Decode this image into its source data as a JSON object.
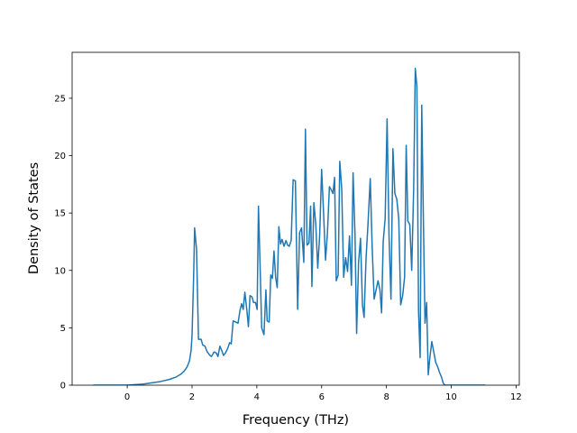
{
  "chart_data": {
    "type": "line",
    "title": "",
    "xlabel": "Frequency (THz)",
    "ylabel": "Density of States",
    "xlim": [
      -1.7,
      12.1
    ],
    "ylim": [
      0,
      29.0
    ],
    "x_ticks": [
      0,
      2,
      4,
      6,
      8,
      10,
      12
    ],
    "y_ticks": [
      0,
      5,
      10,
      15,
      20,
      25
    ],
    "grid": false,
    "legend": "none",
    "color": "#1f77b4",
    "series": [
      {
        "points": [
          [
            -1.05,
            0
          ],
          [
            0.0,
            0
          ],
          [
            0.5,
            0.1
          ],
          [
            1.0,
            0.3
          ],
          [
            1.3,
            0.5
          ],
          [
            1.5,
            0.7
          ],
          [
            1.65,
            0.95
          ],
          [
            1.75,
            1.2
          ],
          [
            1.85,
            1.6
          ],
          [
            1.92,
            2.1
          ],
          [
            1.97,
            3.0
          ],
          [
            2.0,
            4.3
          ],
          [
            2.05,
            9.5
          ],
          [
            2.08,
            13.7
          ],
          [
            2.14,
            11.8
          ],
          [
            2.2,
            4.0
          ],
          [
            2.28,
            4.0
          ],
          [
            2.33,
            3.5
          ],
          [
            2.4,
            3.4
          ],
          [
            2.47,
            2.9
          ],
          [
            2.55,
            2.6
          ],
          [
            2.6,
            2.5
          ],
          [
            2.68,
            2.9
          ],
          [
            2.75,
            2.8
          ],
          [
            2.8,
            2.5
          ],
          [
            2.86,
            3.4
          ],
          [
            2.92,
            3.0
          ],
          [
            2.97,
            2.6
          ],
          [
            3.03,
            2.8
          ],
          [
            3.1,
            3.2
          ],
          [
            3.16,
            3.7
          ],
          [
            3.21,
            3.6
          ],
          [
            3.27,
            5.6
          ],
          [
            3.35,
            5.5
          ],
          [
            3.42,
            5.4
          ],
          [
            3.48,
            6.5
          ],
          [
            3.53,
            7.1
          ],
          [
            3.58,
            6.6
          ],
          [
            3.63,
            8.1
          ],
          [
            3.69,
            6.6
          ],
          [
            3.74,
            5.1
          ],
          [
            3.79,
            7.8
          ],
          [
            3.85,
            7.7
          ],
          [
            3.9,
            7.2
          ],
          [
            3.96,
            7.2
          ],
          [
            4.01,
            6.6
          ],
          [
            4.05,
            15.6
          ],
          [
            4.1,
            10.5
          ],
          [
            4.15,
            5.0
          ],
          [
            4.22,
            4.4
          ],
          [
            4.28,
            8.3
          ],
          [
            4.32,
            5.6
          ],
          [
            4.38,
            5.5
          ],
          [
            4.43,
            9.6
          ],
          [
            4.48,
            9.3
          ],
          [
            4.53,
            11.7
          ],
          [
            4.58,
            9.4
          ],
          [
            4.63,
            8.5
          ],
          [
            4.68,
            13.8
          ],
          [
            4.73,
            12.3
          ],
          [
            4.78,
            12.7
          ],
          [
            4.84,
            12.1
          ],
          [
            4.9,
            12.6
          ],
          [
            4.95,
            12.2
          ],
          [
            5.0,
            12.1
          ],
          [
            5.06,
            12.6
          ],
          [
            5.12,
            17.9
          ],
          [
            5.19,
            17.8
          ],
          [
            5.26,
            6.6
          ],
          [
            5.32,
            13.3
          ],
          [
            5.38,
            13.7
          ],
          [
            5.45,
            10.7
          ],
          [
            5.5,
            22.3
          ],
          [
            5.55,
            12.2
          ],
          [
            5.61,
            12.4
          ],
          [
            5.66,
            15.6
          ],
          [
            5.7,
            8.6
          ],
          [
            5.76,
            15.9
          ],
          [
            5.82,
            14.0
          ],
          [
            5.88,
            10.2
          ],
          [
            5.94,
            13.1
          ],
          [
            6.0,
            18.8
          ],
          [
            6.06,
            15.0
          ],
          [
            6.12,
            10.9
          ],
          [
            6.18,
            13.3
          ],
          [
            6.24,
            17.3
          ],
          [
            6.3,
            17.0
          ],
          [
            6.35,
            16.7
          ],
          [
            6.4,
            18.1
          ],
          [
            6.45,
            9.1
          ],
          [
            6.51,
            9.6
          ],
          [
            6.56,
            19.5
          ],
          [
            6.62,
            17.1
          ],
          [
            6.68,
            9.4
          ],
          [
            6.74,
            11.1
          ],
          [
            6.8,
            9.9
          ],
          [
            6.86,
            13.0
          ],
          [
            6.92,
            8.7
          ],
          [
            6.97,
            18.5
          ],
          [
            7.03,
            13.1
          ],
          [
            7.08,
            4.5
          ],
          [
            7.14,
            10.7
          ],
          [
            7.2,
            12.8
          ],
          [
            7.26,
            7.0
          ],
          [
            7.31,
            5.9
          ],
          [
            7.37,
            11.0
          ],
          [
            7.43,
            14.0
          ],
          [
            7.5,
            18.0
          ],
          [
            7.56,
            12.0
          ],
          [
            7.62,
            7.5
          ],
          [
            7.68,
            8.3
          ],
          [
            7.74,
            9.1
          ],
          [
            7.8,
            8.3
          ],
          [
            7.85,
            6.3
          ],
          [
            7.9,
            12.5
          ],
          [
            7.96,
            14.5
          ],
          [
            8.02,
            23.2
          ],
          [
            8.08,
            13.0
          ],
          [
            8.14,
            7.5
          ],
          [
            8.2,
            20.6
          ],
          [
            8.26,
            16.7
          ],
          [
            8.32,
            16.2
          ],
          [
            8.38,
            14.5
          ],
          [
            8.44,
            7.0
          ],
          [
            8.5,
            7.8
          ],
          [
            8.56,
            9.4
          ],
          [
            8.61,
            20.9
          ],
          [
            8.66,
            14.3
          ],
          [
            8.72,
            14.0
          ],
          [
            8.78,
            10.0
          ],
          [
            8.84,
            17.1
          ],
          [
            8.89,
            27.6
          ],
          [
            8.94,
            26.0
          ],
          [
            8.99,
            6.5
          ],
          [
            9.04,
            2.4
          ],
          [
            9.09,
            24.4
          ],
          [
            9.14,
            14.5
          ],
          [
            9.19,
            5.4
          ],
          [
            9.24,
            7.2
          ],
          [
            9.29,
            0.9
          ],
          [
            9.34,
            2.4
          ],
          [
            9.4,
            3.8
          ],
          [
            9.46,
            2.9
          ],
          [
            9.52,
            2.0
          ],
          [
            9.58,
            1.6
          ],
          [
            9.64,
            1.1
          ],
          [
            9.7,
            0.7
          ],
          [
            9.75,
            0.2
          ],
          [
            9.8,
            0
          ],
          [
            11.05,
            0
          ]
        ]
      }
    ]
  }
}
